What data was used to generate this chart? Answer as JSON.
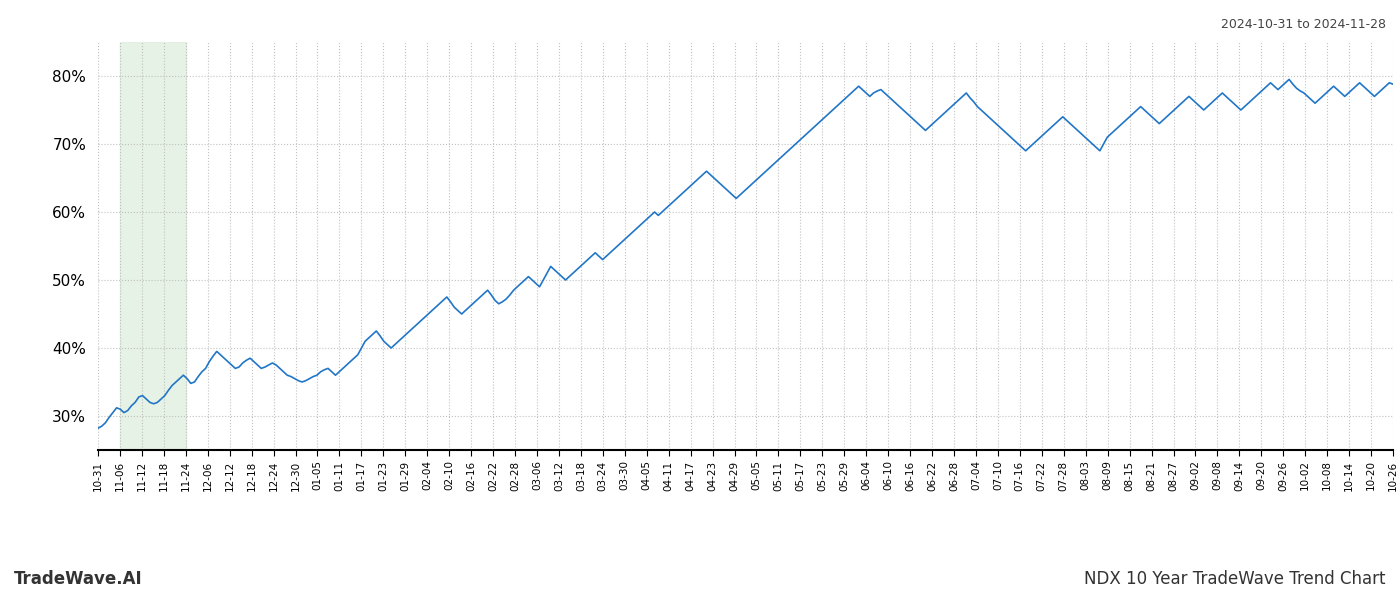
{
  "title_top_right": "2024-10-31 to 2024-11-28",
  "title_bottom_left": "TradeWave.AI",
  "title_bottom_right": "NDX 10 Year TradeWave Trend Chart",
  "line_color": "#2176c7",
  "line_width": 1.2,
  "background_color": "#ffffff",
  "grid_color": "#bbbbbb",
  "grid_style": "dotted",
  "shade_color": "#d6ead6",
  "shade_alpha": 0.6,
  "ylim": [
    25,
    85
  ],
  "yticks": [
    30,
    40,
    50,
    60,
    70,
    80
  ],
  "x_labels": [
    "10-31",
    "11-06",
    "11-12",
    "11-18",
    "11-24",
    "12-06",
    "12-12",
    "12-18",
    "12-24",
    "12-30",
    "01-05",
    "01-11",
    "01-17",
    "01-23",
    "01-29",
    "02-04",
    "02-10",
    "02-16",
    "02-22",
    "02-28",
    "03-06",
    "03-12",
    "03-18",
    "03-24",
    "03-30",
    "04-05",
    "04-11",
    "04-17",
    "04-23",
    "04-29",
    "05-05",
    "05-11",
    "05-17",
    "05-23",
    "05-29",
    "06-04",
    "06-10",
    "06-16",
    "06-22",
    "06-28",
    "07-04",
    "07-10",
    "07-16",
    "07-22",
    "07-28",
    "08-03",
    "08-09",
    "08-15",
    "08-21",
    "08-27",
    "09-02",
    "09-08",
    "09-14",
    "09-20",
    "09-26",
    "10-02",
    "10-08",
    "10-14",
    "10-20",
    "10-26"
  ],
  "shade_x_label_start": "11-06",
  "shade_x_label_end": "11-24",
  "values": [
    28.2,
    28.5,
    29.0,
    29.8,
    30.5,
    31.2,
    31.0,
    30.5,
    30.8,
    31.5,
    32.0,
    32.8,
    33.0,
    32.5,
    32.0,
    31.8,
    32.0,
    32.5,
    33.0,
    33.8,
    34.5,
    35.0,
    35.5,
    36.0,
    35.5,
    34.8,
    35.0,
    35.8,
    36.5,
    37.0,
    38.0,
    38.8,
    39.5,
    39.0,
    38.5,
    38.0,
    37.5,
    37.0,
    37.2,
    37.8,
    38.2,
    38.5,
    38.0,
    37.5,
    37.0,
    37.2,
    37.5,
    37.8,
    37.5,
    37.0,
    36.5,
    36.0,
    35.8,
    35.5,
    35.2,
    35.0,
    35.2,
    35.5,
    35.8,
    36.0,
    36.5,
    36.8,
    37.0,
    36.5,
    36.0,
    36.5,
    37.0,
    37.5,
    38.0,
    38.5,
    39.0,
    40.0,
    41.0,
    41.5,
    42.0,
    42.5,
    41.8,
    41.0,
    40.5,
    40.0,
    40.5,
    41.0,
    41.5,
    42.0,
    42.5,
    43.0,
    43.5,
    44.0,
    44.5,
    45.0,
    45.5,
    46.0,
    46.5,
    47.0,
    47.5,
    46.8,
    46.0,
    45.5,
    45.0,
    45.5,
    46.0,
    46.5,
    47.0,
    47.5,
    48.0,
    48.5,
    47.8,
    47.0,
    46.5,
    46.8,
    47.2,
    47.8,
    48.5,
    49.0,
    49.5,
    50.0,
    50.5,
    50.0,
    49.5,
    49.0,
    50.0,
    51.0,
    52.0,
    51.5,
    51.0,
    50.5,
    50.0,
    50.5,
    51.0,
    51.5,
    52.0,
    52.5,
    53.0,
    53.5,
    54.0,
    53.5,
    53.0,
    53.5,
    54.0,
    54.5,
    55.0,
    55.5,
    56.0,
    56.5,
    57.0,
    57.5,
    58.0,
    58.5,
    59.0,
    59.5,
    60.0,
    59.5,
    60.0,
    60.5,
    61.0,
    61.5,
    62.0,
    62.5,
    63.0,
    63.5,
    64.0,
    64.5,
    65.0,
    65.5,
    66.0,
    65.5,
    65.0,
    64.5,
    64.0,
    63.5,
    63.0,
    62.5,
    62.0,
    62.5,
    63.0,
    63.5,
    64.0,
    64.5,
    65.0,
    65.5,
    66.0,
    66.5,
    67.0,
    67.5,
    68.0,
    68.5,
    69.0,
    69.5,
    70.0,
    70.5,
    71.0,
    71.5,
    72.0,
    72.5,
    73.0,
    73.5,
    74.0,
    74.5,
    75.0,
    75.5,
    76.0,
    76.5,
    77.0,
    77.5,
    78.0,
    78.5,
    78.0,
    77.5,
    77.0,
    77.5,
    77.8,
    78.0,
    77.5,
    77.0,
    76.5,
    76.0,
    75.5,
    75.0,
    74.5,
    74.0,
    73.5,
    73.0,
    72.5,
    72.0,
    72.5,
    73.0,
    73.5,
    74.0,
    74.5,
    75.0,
    75.5,
    76.0,
    76.5,
    77.0,
    77.5,
    76.8,
    76.2,
    75.5,
    75.0,
    74.5,
    74.0,
    73.5,
    73.0,
    72.5,
    72.0,
    71.5,
    71.0,
    70.5,
    70.0,
    69.5,
    69.0,
    69.5,
    70.0,
    70.5,
    71.0,
    71.5,
    72.0,
    72.5,
    73.0,
    73.5,
    74.0,
    73.5,
    73.0,
    72.5,
    72.0,
    71.5,
    71.0,
    70.5,
    70.0,
    69.5,
    69.0,
    70.0,
    71.0,
    71.5,
    72.0,
    72.5,
    73.0,
    73.5,
    74.0,
    74.5,
    75.0,
    75.5,
    75.0,
    74.5,
    74.0,
    73.5,
    73.0,
    73.5,
    74.0,
    74.5,
    75.0,
    75.5,
    76.0,
    76.5,
    77.0,
    76.5,
    76.0,
    75.5,
    75.0,
    75.5,
    76.0,
    76.5,
    77.0,
    77.5,
    77.0,
    76.5,
    76.0,
    75.5,
    75.0,
    75.5,
    76.0,
    76.5,
    77.0,
    77.5,
    78.0,
    78.5,
    79.0,
    78.5,
    78.0,
    78.5,
    79.0,
    79.5,
    78.8,
    78.2,
    77.8,
    77.5,
    77.0,
    76.5,
    76.0,
    76.5,
    77.0,
    77.5,
    78.0,
    78.5,
    78.0,
    77.5,
    77.0,
    77.5,
    78.0,
    78.5,
    79.0,
    78.5,
    78.0,
    77.5,
    77.0,
    77.5,
    78.0,
    78.5,
    79.0,
    78.8
  ]
}
